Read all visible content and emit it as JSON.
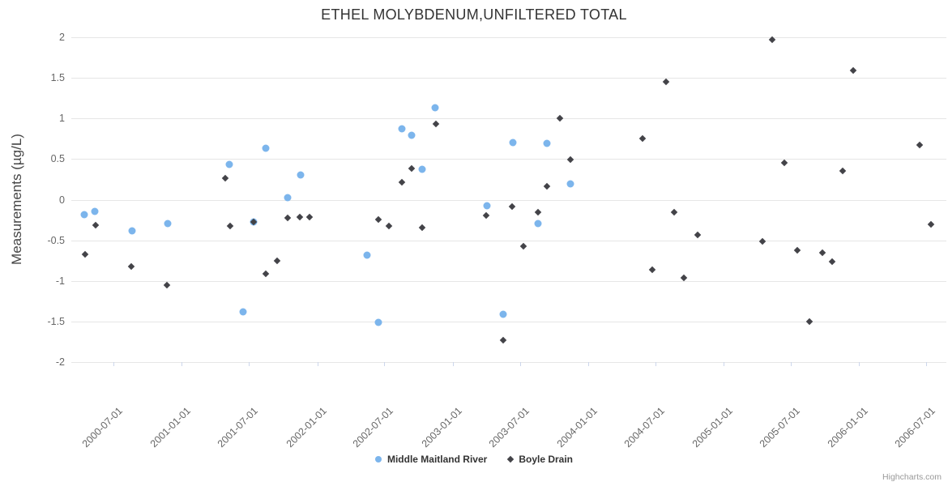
{
  "credits": "Highcharts.com",
  "chart_data": {
    "type": "scatter",
    "title": "ETHEL MOLYBDENUM,UNFILTERED TOTAL",
    "xlabel": "",
    "ylabel": "Measurements (µg/L)",
    "ylim": [
      -2,
      2
    ],
    "y_ticks": [
      2,
      1.5,
      1,
      0.5,
      0,
      -0.5,
      -1,
      -1.5,
      -2
    ],
    "y_tick_labels": [
      "2",
      "1.5",
      "1",
      "0.5",
      "0",
      "-0.5",
      "-1",
      "-1.5",
      "-2"
    ],
    "x_range": [
      "2000-03-09",
      "2006-08-24"
    ],
    "x_ticks": [
      "2000-07-01",
      "2001-01-01",
      "2001-07-01",
      "2002-01-01",
      "2002-07-01",
      "2003-01-01",
      "2003-07-01",
      "2004-01-01",
      "2004-07-01",
      "2005-01-01",
      "2005-07-01",
      "2006-01-01",
      "2006-07-01"
    ],
    "grid": "horizontal",
    "legend_position": "bottom-center",
    "series": [
      {
        "name": "Middle Maitland River",
        "marker": "circle",
        "color": "#7cb5ec",
        "points": [
          {
            "x": "2000-04-13",
            "y": -0.18
          },
          {
            "x": "2000-05-12",
            "y": -0.14
          },
          {
            "x": "2000-08-20",
            "y": -0.38
          },
          {
            "x": "2000-11-24",
            "y": -0.29
          },
          {
            "x": "2001-05-09",
            "y": 0.43
          },
          {
            "x": "2001-06-15",
            "y": -1.38
          },
          {
            "x": "2001-07-14",
            "y": -0.27
          },
          {
            "x": "2001-08-16",
            "y": 0.63
          },
          {
            "x": "2001-10-14",
            "y": 0.02
          },
          {
            "x": "2001-11-18",
            "y": 0.3
          },
          {
            "x": "2002-05-16",
            "y": -0.68
          },
          {
            "x": "2002-06-15",
            "y": -1.51
          },
          {
            "x": "2002-08-17",
            "y": 0.87
          },
          {
            "x": "2002-09-13",
            "y": 0.79
          },
          {
            "x": "2002-10-11",
            "y": 0.37
          },
          {
            "x": "2002-11-15",
            "y": 1.13
          },
          {
            "x": "2003-04-04",
            "y": -0.07
          },
          {
            "x": "2003-05-17",
            "y": -1.41
          },
          {
            "x": "2003-06-13",
            "y": 0.7
          },
          {
            "x": "2003-08-19",
            "y": -0.29
          },
          {
            "x": "2003-09-12",
            "y": 0.69
          },
          {
            "x": "2003-11-15",
            "y": 0.19
          }
        ]
      },
      {
        "name": "Boyle Drain",
        "marker": "diamond",
        "color": "#434348",
        "points": [
          {
            "x": "2000-04-16",
            "y": -0.67
          },
          {
            "x": "2000-05-14",
            "y": -0.31
          },
          {
            "x": "2000-08-18",
            "y": -0.82
          },
          {
            "x": "2000-11-22",
            "y": -1.05
          },
          {
            "x": "2001-04-28",
            "y": 0.26
          },
          {
            "x": "2001-05-11",
            "y": -0.32
          },
          {
            "x": "2001-07-14",
            "y": -0.27
          },
          {
            "x": "2001-08-16",
            "y": -0.91
          },
          {
            "x": "2001-09-15",
            "y": -0.75
          },
          {
            "x": "2001-10-14",
            "y": -0.22
          },
          {
            "x": "2001-11-15",
            "y": -0.21
          },
          {
            "x": "2001-12-12",
            "y": -0.21
          },
          {
            "x": "2002-06-15",
            "y": -0.24
          },
          {
            "x": "2002-07-14",
            "y": -0.32
          },
          {
            "x": "2002-08-17",
            "y": 0.21
          },
          {
            "x": "2002-09-13",
            "y": 0.38
          },
          {
            "x": "2002-10-11",
            "y": -0.34
          },
          {
            "x": "2002-11-17",
            "y": 0.93
          },
          {
            "x": "2003-04-02",
            "y": -0.19
          },
          {
            "x": "2003-05-17",
            "y": -1.73
          },
          {
            "x": "2003-06-10",
            "y": -0.08
          },
          {
            "x": "2003-07-11",
            "y": -0.57
          },
          {
            "x": "2003-08-19",
            "y": -0.15
          },
          {
            "x": "2003-09-12",
            "y": 0.16
          },
          {
            "x": "2003-10-17",
            "y": 1.0
          },
          {
            "x": "2003-11-15",
            "y": 0.49
          },
          {
            "x": "2004-05-27",
            "y": 0.75
          },
          {
            "x": "2004-06-22",
            "y": -0.86
          },
          {
            "x": "2004-07-30",
            "y": 1.45
          },
          {
            "x": "2004-08-20",
            "y": -0.15
          },
          {
            "x": "2004-09-16",
            "y": -0.96
          },
          {
            "x": "2004-10-23",
            "y": -0.43
          },
          {
            "x": "2005-04-15",
            "y": -0.51
          },
          {
            "x": "2005-05-11",
            "y": 1.97
          },
          {
            "x": "2005-06-13",
            "y": 0.45
          },
          {
            "x": "2005-07-18",
            "y": -0.62
          },
          {
            "x": "2005-08-20",
            "y": -1.5
          },
          {
            "x": "2005-09-24",
            "y": -0.65
          },
          {
            "x": "2005-10-20",
            "y": -0.76
          },
          {
            "x": "2005-11-18",
            "y": 0.35
          },
          {
            "x": "2005-12-16",
            "y": 1.59
          },
          {
            "x": "2006-06-14",
            "y": 0.67
          },
          {
            "x": "2006-07-13",
            "y": -0.3
          }
        ]
      }
    ]
  }
}
